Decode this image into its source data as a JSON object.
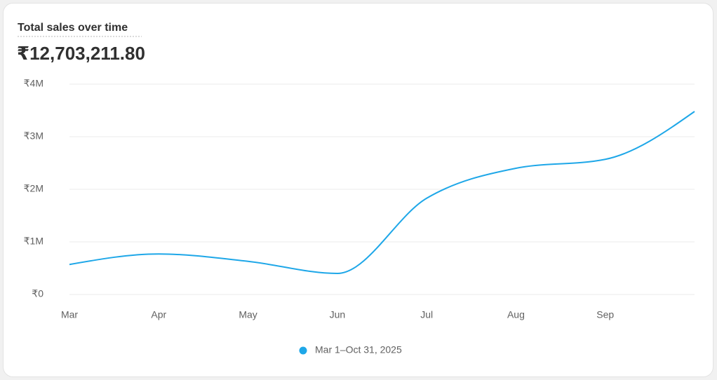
{
  "chart_data": {
    "type": "line",
    "title": "Total sales over time",
    "total": "₹12,703,211.80",
    "categories": [
      "Mar",
      "Apr",
      "May",
      "Jun",
      "Jul",
      "Aug",
      "Sep",
      null
    ],
    "series": [
      {
        "name": "Mar 1–Oct 31, 2025",
        "color": "#1ea7e8",
        "values": [
          570000,
          770000,
          630000,
          400000,
          1830000,
          2400000,
          2570000,
          3480000
        ]
      }
    ],
    "ylim": [
      0,
      4000000
    ],
    "yticks": [
      {
        "value": 0,
        "label": "₹0"
      },
      {
        "value": 1000000,
        "label": "₹1M"
      },
      {
        "value": 2000000,
        "label": "₹2M"
      },
      {
        "value": 3000000,
        "label": "₹3M"
      },
      {
        "value": 4000000,
        "label": "₹4M"
      }
    ],
    "grid": true
  }
}
